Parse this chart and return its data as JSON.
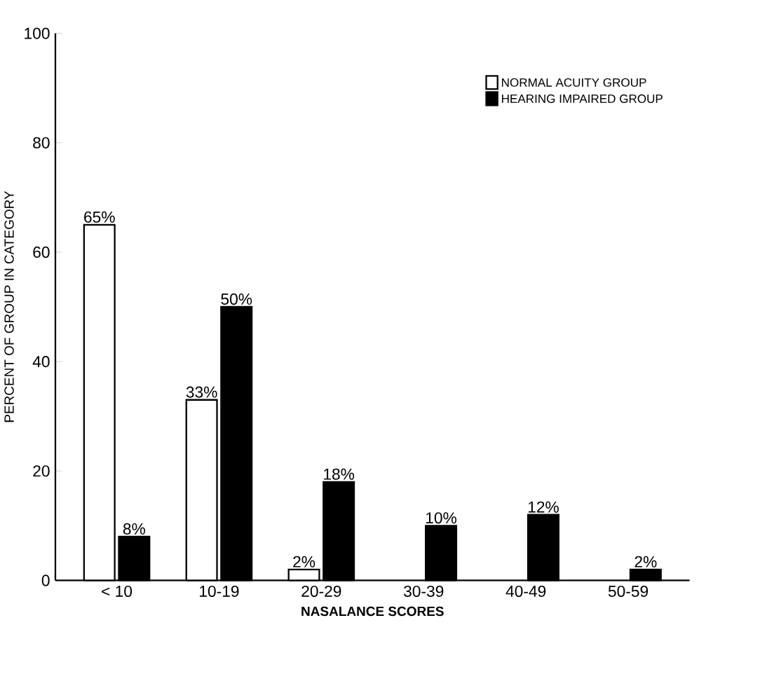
{
  "chart_data": {
    "type": "bar",
    "xlabel": "NASALANCE SCORES",
    "ylabel": "PERCENT OF GROUP IN CATEGORY",
    "categories": [
      "< 10",
      "10-19",
      "20-29",
      "30-39",
      "40-49",
      "50-59"
    ],
    "series": [
      {
        "name": "NORMAL ACUITY GROUP",
        "color": "#ffffff",
        "values": [
          65,
          33,
          2,
          null,
          null,
          null
        ],
        "value_labels": [
          "65%",
          "33%",
          "2%",
          null,
          null,
          null
        ]
      },
      {
        "name": "HEARING IMPAIRED GROUP",
        "color": "#000000",
        "values": [
          8,
          50,
          18,
          10,
          12,
          2
        ],
        "value_labels": [
          "8%",
          "50%",
          "18%",
          "10%",
          "12%",
          "2%"
        ]
      }
    ],
    "ylim": [
      0,
      100
    ],
    "yticks": [
      0,
      20,
      40,
      60,
      80,
      100
    ],
    "legend": "top right",
    "grid": false
  }
}
